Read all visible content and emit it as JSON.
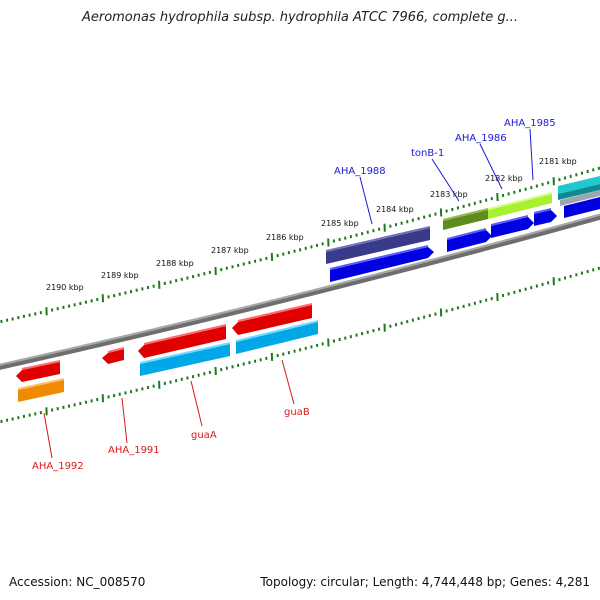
{
  "title": "Aeromonas hydrophila subsp. hydrophila ATCC 7966, complete g...",
  "footer": {
    "accession": "Accession: NC_008570",
    "summary": "Topology: circular; Length: 4,744,448 bp; Genes: 4,281"
  },
  "scale_labels": [
    {
      "id": "k2181",
      "text": "2181 kbp"
    },
    {
      "id": "k2182",
      "text": "2182 kbp"
    },
    {
      "id": "k2183",
      "text": "2183 kbp"
    },
    {
      "id": "k2184",
      "text": "2184 kbp"
    },
    {
      "id": "k2185",
      "text": "2185 kbp"
    },
    {
      "id": "k2186",
      "text": "2186 kbp"
    },
    {
      "id": "k2187",
      "text": "2187 kbp"
    },
    {
      "id": "k2188",
      "text": "2188 kbp"
    },
    {
      "id": "k2189",
      "text": "2189 kbp"
    },
    {
      "id": "k2190",
      "text": "2190 kbp"
    }
  ],
  "gene_labels": {
    "forward": [
      {
        "id": "aha1985",
        "text": "AHA_1985"
      },
      {
        "id": "aha1986",
        "text": "AHA_1986"
      },
      {
        "id": "tonb1",
        "text": "tonB-1"
      },
      {
        "id": "aha1988",
        "text": "AHA_1988"
      }
    ],
    "reverse": [
      {
        "id": "guab",
        "text": "guaB"
      },
      {
        "id": "guaa",
        "text": "guaA"
      },
      {
        "id": "aha1991",
        "text": "AHA_1991"
      },
      {
        "id": "aha1992",
        "text": "AHA_1992"
      }
    ]
  },
  "colors": {
    "forward_label": "#1a1ad6",
    "reverse_label": "#d61a1a",
    "tick": "#1f7a1f",
    "backbone": "#808080",
    "gene_blue": "#0000e0",
    "gene_red": "#e00000",
    "gene_cyan": "#00a8e8",
    "gene_orange": "#f08a00",
    "gene_purple": "#3a3a8a",
    "gene_olive": "#5e8a1e",
    "gene_lime": "#a8f030",
    "gene_teal": "#20c8d0"
  }
}
